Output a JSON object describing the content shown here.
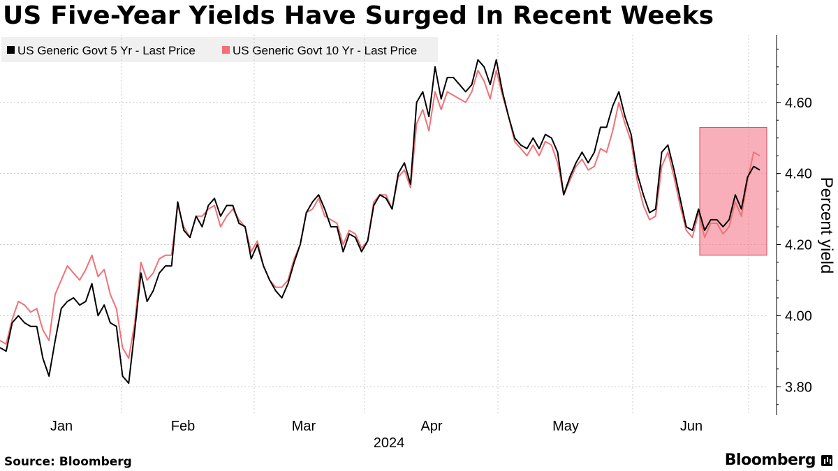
{
  "title": "US Five-Year Yields Have Surged In Recent Weeks",
  "source": "Source: Bloomberg",
  "brand": "Bloomberg",
  "chart_data": {
    "type": "line",
    "title": "US Five-Year Yields Have Surged In Recent Weeks",
    "ylabel": "Percent yield",
    "xlabel": "2024",
    "ylim": [
      3.72,
      4.79
    ],
    "y_ticks": [
      3.8,
      4.0,
      4.2,
      4.4,
      4.6
    ],
    "y_tick_labels": [
      "3.80",
      "4.00",
      "4.20",
      "4.40",
      "4.60"
    ],
    "month_labels": [
      "Jan",
      "Feb",
      "Mar",
      "Apr",
      "May",
      "Jun"
    ],
    "year_label": "2024",
    "highlight_box": {
      "y_from": 4.17,
      "y_to": 4.53,
      "color": "#f47a8c"
    },
    "colors": {
      "five_year": "#000000",
      "ten_year": "#f07277",
      "grid": "#c8c8c8"
    },
    "series": [
      {
        "name": "US Generic Govt 5 Yr - Last Price",
        "color": "#000000",
        "values": [
          3.91,
          3.9,
          3.98,
          4.0,
          3.98,
          3.97,
          3.97,
          3.88,
          3.83,
          3.93,
          4.02,
          4.04,
          4.05,
          4.03,
          4.04,
          4.09,
          4.0,
          4.03,
          3.98,
          3.97,
          3.83,
          3.81,
          3.96,
          4.12,
          4.04,
          4.07,
          4.12,
          4.14,
          4.14,
          4.32,
          4.24,
          4.22,
          4.28,
          4.25,
          4.31,
          4.33,
          4.28,
          4.31,
          4.31,
          4.26,
          4.25,
          4.16,
          4.2,
          4.14,
          4.1,
          4.07,
          4.05,
          4.09,
          4.15,
          4.2,
          4.29,
          4.32,
          4.34,
          4.3,
          4.25,
          4.25,
          4.18,
          4.23,
          4.22,
          4.18,
          4.21,
          4.31,
          4.34,
          4.33,
          4.3,
          4.4,
          4.43,
          4.37,
          4.6,
          4.63,
          4.56,
          4.7,
          4.61,
          4.67,
          4.67,
          4.65,
          4.63,
          4.65,
          4.72,
          4.7,
          4.65,
          4.72,
          4.63,
          4.56,
          4.5,
          4.48,
          4.47,
          4.5,
          4.47,
          4.51,
          4.5,
          4.46,
          4.34,
          4.39,
          4.43,
          4.46,
          4.43,
          4.46,
          4.53,
          4.53,
          4.59,
          4.63,
          4.56,
          4.51,
          4.4,
          4.34,
          4.29,
          4.3,
          4.46,
          4.48,
          4.41,
          4.33,
          4.25,
          4.24,
          4.3,
          4.24,
          4.27,
          4.27,
          4.25,
          4.27,
          4.34,
          4.3,
          4.39,
          4.42,
          4.41
        ]
      },
      {
        "name": "US Generic Govt 10 Yr - Last Price",
        "color": "#f07277",
        "values": [
          3.93,
          3.92,
          3.99,
          4.04,
          4.03,
          4.01,
          4.02,
          3.96,
          3.93,
          4.06,
          4.1,
          4.14,
          4.12,
          4.1,
          4.13,
          4.17,
          4.11,
          4.13,
          4.06,
          4.02,
          3.91,
          3.88,
          3.98,
          4.15,
          4.1,
          4.12,
          4.16,
          4.17,
          4.17,
          4.31,
          4.25,
          4.22,
          4.28,
          4.28,
          4.3,
          4.31,
          4.25,
          4.28,
          4.3,
          4.27,
          4.25,
          4.18,
          4.21,
          4.14,
          4.1,
          4.08,
          4.08,
          4.1,
          4.16,
          4.2,
          4.29,
          4.3,
          4.33,
          4.28,
          4.27,
          4.26,
          4.2,
          4.24,
          4.23,
          4.19,
          4.21,
          4.32,
          4.34,
          4.34,
          4.3,
          4.39,
          4.41,
          4.36,
          4.54,
          4.58,
          4.52,
          4.63,
          4.58,
          4.63,
          4.62,
          4.61,
          4.6,
          4.63,
          4.69,
          4.66,
          4.61,
          4.69,
          4.62,
          4.56,
          4.49,
          4.47,
          4.45,
          4.48,
          4.45,
          4.49,
          4.48,
          4.43,
          4.34,
          4.38,
          4.42,
          4.44,
          4.41,
          4.42,
          4.47,
          4.46,
          4.52,
          4.6,
          4.54,
          4.49,
          4.38,
          4.31,
          4.27,
          4.28,
          4.42,
          4.46,
          4.39,
          4.31,
          4.24,
          4.22,
          4.29,
          4.22,
          4.26,
          4.26,
          4.23,
          4.25,
          4.32,
          4.28,
          4.38,
          4.46,
          4.45
        ]
      }
    ]
  }
}
